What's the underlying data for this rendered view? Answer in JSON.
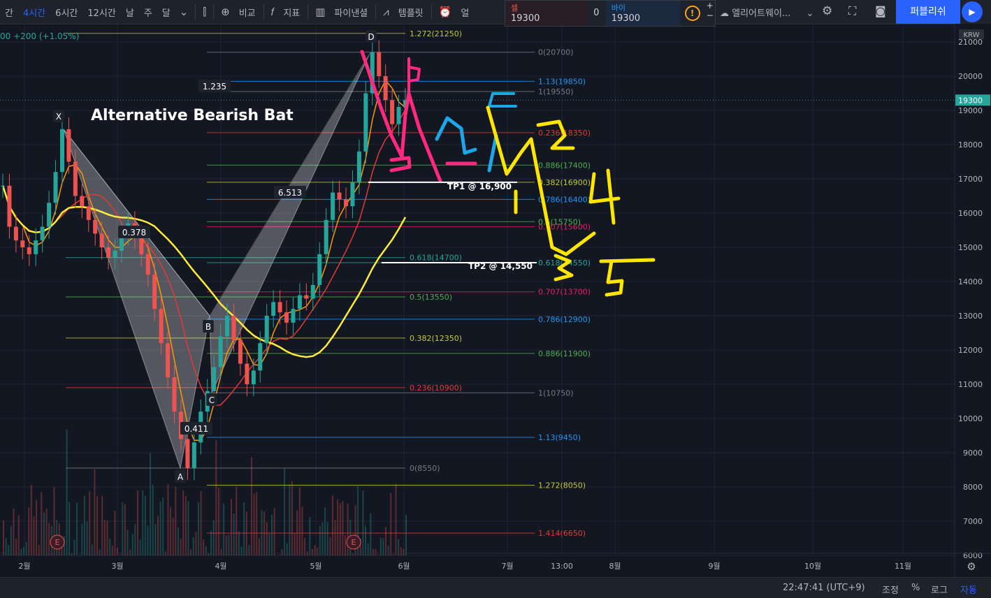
{
  "toolbar": {
    "intervals": [
      "간",
      "4시간",
      "6시간",
      "12시간",
      "날",
      "주",
      "달"
    ],
    "compare": "비교",
    "indicators": "지표",
    "pine": "파이낸셜",
    "templates": "템플릿",
    "alert": "얼",
    "symbol_search": "엘리어트웨이...",
    "publish": "퍼블리쉬"
  },
  "order_panel": {
    "sell_label": "셀",
    "sell_price": "19300",
    "quantity": "0",
    "buy_label": "바이",
    "buy_price": "19300",
    "warn_icon": "!",
    "plus": "+",
    "minus": "−"
  },
  "header_change": "00 +200 (+1.05%)",
  "currency": "KRW",
  "current_price": "19300",
  "colors": {
    "background": "#131722",
    "grid": "#1f2433",
    "up": "#26a69a",
    "down": "#ef5350",
    "highlight": "#2962ff",
    "pink": "#ff2a80",
    "marker_blue": "#1ea7e8",
    "marker_yellow": "#ffe600"
  },
  "chart_data": {
    "type": "candlestick",
    "title": "Alternative Bearish Bat",
    "currency": "KRW",
    "ylim": [
      6000,
      21500
    ],
    "y_ticks": [
      6000,
      7000,
      8000,
      9000,
      10000,
      11000,
      12000,
      13000,
      14000,
      15000,
      16000,
      17000,
      18000,
      19000,
      20000,
      21000
    ],
    "x_ticks": [
      "2월",
      "3월",
      "4월",
      "5월",
      "6월",
      "7월",
      "13:00",
      "8월",
      "9월",
      "10월",
      "11월"
    ],
    "pattern_points": [
      {
        "label": "X",
        "price": 18450
      },
      {
        "label": "A",
        "price": 8550
      },
      {
        "label": "B",
        "price": 13000
      },
      {
        "label": "C",
        "price": 10750
      },
      {
        "label": "D",
        "price": 20700
      }
    ],
    "ratios": [
      "1.235",
      "0.378",
      "6.513",
      "0.411"
    ],
    "fib_levels_1": [
      {
        "label": "1.272(21250)",
        "price": 21250,
        "color": "#c0ca33"
      },
      {
        "label": "0.618(14700)",
        "price": 14700,
        "color": "#26a69a"
      },
      {
        "label": "0.5(13550)",
        "price": 13550,
        "color": "#4caf50"
      },
      {
        "label": "0.382(12350)",
        "price": 12350,
        "color": "#c0ca33"
      },
      {
        "label": "0.236(10900)",
        "price": 10900,
        "color": "#e53935"
      },
      {
        "label": "0(8550)",
        "price": 8550,
        "color": "#787b86"
      }
    ],
    "fib_levels_2": [
      {
        "label": "0(20700)",
        "price": 20700,
        "color": "#787b86"
      },
      {
        "label": "1.13(19850)",
        "price": 19850,
        "color": "#2196f3"
      },
      {
        "label": "1(19550)",
        "price": 19550,
        "color": "#787b86"
      },
      {
        "label": "0.236(18350)",
        "price": 18350,
        "color": "#e53935"
      },
      {
        "label": "0.886(17400)",
        "price": 17400,
        "color": "#4caf50"
      },
      {
        "label": "0.382(16900)",
        "price": 16900,
        "color": "#c0ca33"
      },
      {
        "label": "0.786(16400)",
        "price": 16400,
        "color": "#2196f3"
      },
      {
        "label": "0.707(15600)",
        "price": 15600,
        "color": "#e91e63"
      },
      {
        "label": "0.5(15750)",
        "price": 15750,
        "color": "#4caf50"
      },
      {
        "label": "0.618(14550)",
        "price": 14550,
        "color": "#26a69a"
      },
      {
        "label": "0.707(13700)",
        "price": 13700,
        "color": "#e91e63"
      },
      {
        "label": "0.786(12900)",
        "price": 12900,
        "color": "#2196f3"
      },
      {
        "label": "0.886(11900)",
        "price": 11900,
        "color": "#4caf50"
      },
      {
        "label": "1(10750)",
        "price": 10750,
        "color": "#787b86"
      },
      {
        "label": "1.13(9450)",
        "price": 9450,
        "color": "#2196f3"
      },
      {
        "label": "1.272(8050)",
        "price": 8050,
        "color": "#c0ca33"
      },
      {
        "label": "1.414(6650)",
        "price": 6650,
        "color": "#e53935"
      }
    ],
    "targets": [
      {
        "label": "TP1 @ 16,900",
        "price": 16900
      },
      {
        "label": "TP2 @ 14,550",
        "price": 14550
      }
    ],
    "handwritten_marks": [
      "b",
      "a",
      "c",
      "1",
      "2",
      "3",
      "4",
      "5"
    ],
    "event_markers": [
      "E",
      "E"
    ],
    "closes": [
      16800,
      15600,
      15200,
      15000,
      14800,
      15200,
      15600,
      16300,
      17200,
      18450,
      17500,
      16500,
      16200,
      15800,
      15400,
      15000,
      14700,
      14900,
      15400,
      15700,
      15300,
      14800,
      14200,
      13200,
      12200,
      11200,
      10200,
      9400,
      8550,
      9300,
      10200,
      10800,
      11500,
      12400,
      13000,
      12300,
      11600,
      11000,
      11400,
      12200,
      13000,
      13400,
      13100,
      12800,
      13200,
      13600,
      13500,
      13900,
      14800,
      15800,
      16600,
      16400,
      16200,
      16900,
      17800,
      19500,
      20700,
      20000,
      19300,
      18600,
      19100,
      19300
    ],
    "volume_range": [
      6000,
      9800
    ]
  },
  "status_bar": {
    "time": "22:47:41 (UTC+9)",
    "adjust": "조정",
    "percent": "%",
    "log": "로그",
    "auto": "자동"
  }
}
